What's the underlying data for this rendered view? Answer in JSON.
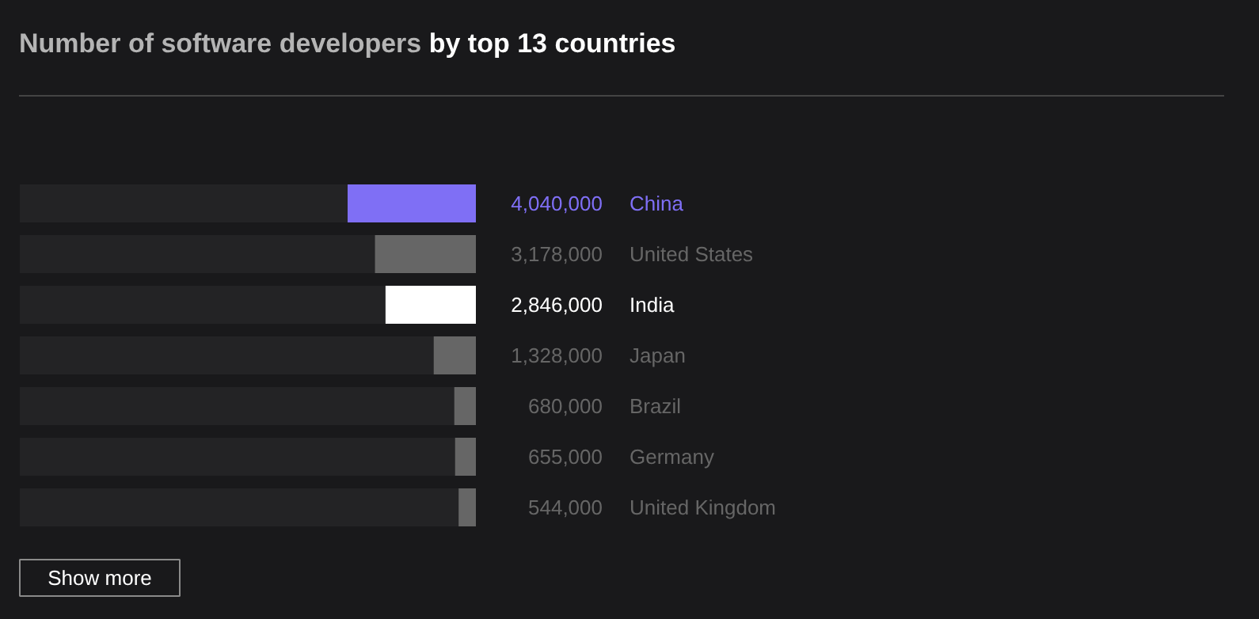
{
  "chart_data": {
    "type": "bar",
    "orientation": "horizontal",
    "title": "Number of software developers",
    "subtitle": "by top 13 countries",
    "categories": [
      "China",
      "United States",
      "India",
      "Japan",
      "Brazil",
      "Germany",
      "United Kingdom"
    ],
    "values": [
      4040000,
      3178000,
      2846000,
      1328000,
      680000,
      655000,
      544000
    ],
    "colors": [
      "#7f6ff5",
      "#666666",
      "#ffffff",
      "#666666",
      "#666666",
      "#666666",
      "#666666"
    ],
    "value_labels": [
      "4,040,000",
      "3,178,000",
      "2,846,000",
      "1,328,000",
      "680,000",
      "655,000",
      "544,000"
    ],
    "tick_labels": false,
    "grid": false,
    "annotations": [
      "Show more"
    ]
  }
}
